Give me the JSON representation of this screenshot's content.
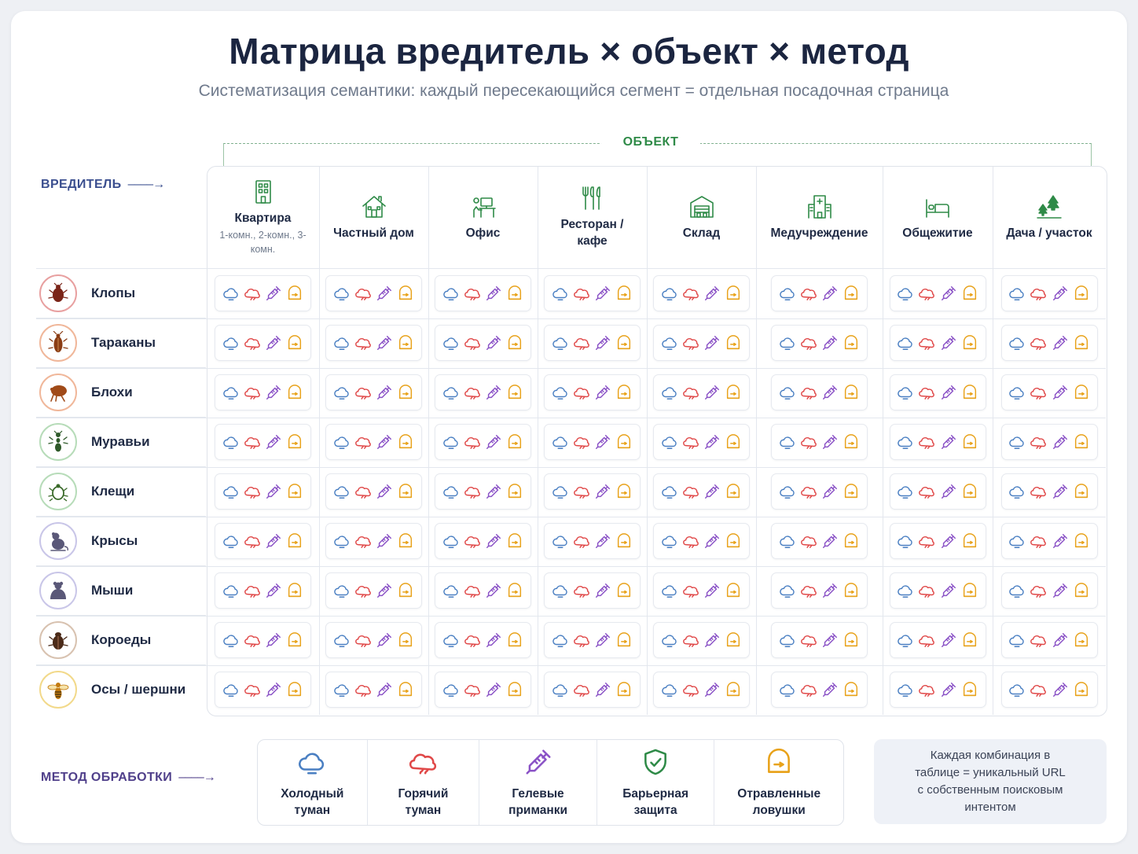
{
  "title": "Матрица вредитель × объект × метод",
  "subtitle": "Систематизация семантики: каждый пересекающийся сегмент = отдельная посадочная страница",
  "axes": {
    "object_label": "ОБЪЕКТ",
    "pest_label": "ВРЕДИТЕЛЬ",
    "method_label": "МЕТОД ОБРАБОТКИ",
    "arrow": "––––→"
  },
  "colors": {
    "cold_fog": "#4a7fc2",
    "hot_fog": "#e04848",
    "gel_bait": "#8a52c6",
    "barrier": "#2e8a47",
    "trap": "#e8a21a",
    "object_accent": "#2e8a47"
  },
  "objects": [
    {
      "name": "Квартира",
      "sub": "1-комн., 2-комн., 3-комн.",
      "icon": "apartment-building-icon"
    },
    {
      "name": "Частный дом",
      "sub": "",
      "icon": "house-icon"
    },
    {
      "name": "Офис",
      "sub": "",
      "icon": "office-desk-icon"
    },
    {
      "name": "Ресторан / кафе",
      "sub": "",
      "icon": "fork-knife-icon"
    },
    {
      "name": "Склад",
      "sub": "",
      "icon": "warehouse-icon"
    },
    {
      "name": "Медучреждение",
      "sub": "",
      "icon": "hospital-icon"
    },
    {
      "name": "Общежитие",
      "sub": "",
      "icon": "bed-icon"
    },
    {
      "name": "Дача / участок",
      "sub": "",
      "icon": "trees-icon"
    }
  ],
  "pests": [
    {
      "name": "Клопы",
      "icon": "bedbug-icon",
      "ring": "#e8a0a0",
      "fill": "#7a2418"
    },
    {
      "name": "Тараканы",
      "icon": "cockroach-icon",
      "ring": "#f0b79a",
      "fill": "#8a3c14"
    },
    {
      "name": "Блохи",
      "icon": "flea-icon",
      "ring": "#f0b79a",
      "fill": "#a04a18"
    },
    {
      "name": "Муравьи",
      "icon": "ant-icon",
      "ring": "#b7dcb9",
      "fill": "#2f5a2a"
    },
    {
      "name": "Клещи",
      "icon": "tick-icon",
      "ring": "#b7dcb9",
      "fill": "#3a6a2a"
    },
    {
      "name": "Крысы",
      "icon": "rat-icon",
      "ring": "#c9c6e8",
      "fill": "#5a5878"
    },
    {
      "name": "Мыши",
      "icon": "mouse-icon",
      "ring": "#c9c6e8",
      "fill": "#5a5878"
    },
    {
      "name": "Короеды",
      "icon": "bark-beetle-icon",
      "ring": "#d8c2b0",
      "fill": "#4a2a18"
    },
    {
      "name": "Осы / шершни",
      "icon": "wasp-icon",
      "ring": "#f2d98a",
      "fill": "#c27a10"
    }
  ],
  "methods": [
    {
      "label": "Холодный туман",
      "icon": "cold-fog-icon",
      "color": "#4a7fc2"
    },
    {
      "label": "Горячий туман",
      "icon": "hot-fog-icon",
      "color": "#e04848"
    },
    {
      "label": "Гелевые приманки",
      "icon": "gel-syringe-icon",
      "color": "#8a52c6"
    },
    {
      "label": "Барьерная защита",
      "icon": "barrier-shield-icon",
      "color": "#2e8a47"
    },
    {
      "label": "Отравленные ловушки",
      "icon": "poison-trap-icon",
      "color": "#e8a21a"
    }
  ],
  "cell_methods": [
    "cold-fog-icon",
    "hot-fog-icon",
    "gel-syringe-icon",
    "poison-trap-icon"
  ],
  "note": "Каждая комбинация в таблице = уникальный URL с собственным поисковым интентом"
}
